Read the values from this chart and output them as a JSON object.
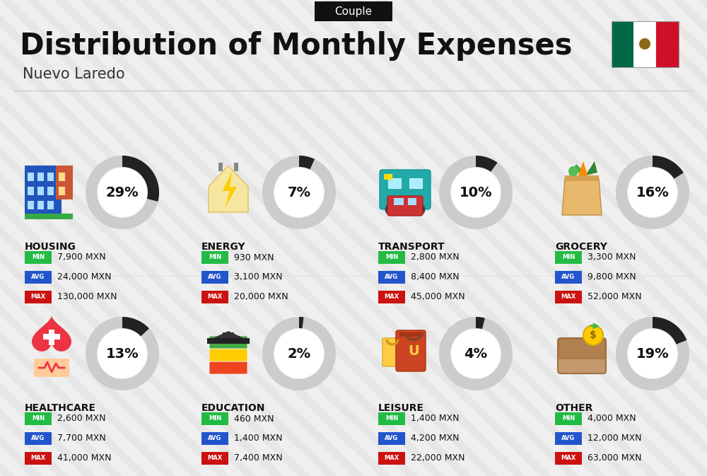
{
  "title": "Distribution of Monthly Expenses",
  "subtitle": "Nuevo Laredo",
  "tag": "Couple",
  "bg_color": "#efefef",
  "categories": [
    {
      "name": "HOUSING",
      "pct": 29,
      "icon": "housing",
      "min": "7,900 MXN",
      "avg": "24,000 MXN",
      "max": "130,000 MXN",
      "row": 0,
      "col": 0
    },
    {
      "name": "ENERGY",
      "pct": 7,
      "icon": "energy",
      "min": "930 MXN",
      "avg": "3,100 MXN",
      "max": "20,000 MXN",
      "row": 0,
      "col": 1
    },
    {
      "name": "TRANSPORT",
      "pct": 10,
      "icon": "transport",
      "min": "2,800 MXN",
      "avg": "8,400 MXN",
      "max": "45,000 MXN",
      "row": 0,
      "col": 2
    },
    {
      "name": "GROCERY",
      "pct": 16,
      "icon": "grocery",
      "min": "3,300 MXN",
      "avg": "9,800 MXN",
      "max": "52,000 MXN",
      "row": 0,
      "col": 3
    },
    {
      "name": "HEALTHCARE",
      "pct": 13,
      "icon": "healthcare",
      "min": "2,600 MXN",
      "avg": "7,700 MXN",
      "max": "41,000 MXN",
      "row": 1,
      "col": 0
    },
    {
      "name": "EDUCATION",
      "pct": 2,
      "icon": "education",
      "min": "460 MXN",
      "avg": "1,400 MXN",
      "max": "7,400 MXN",
      "row": 1,
      "col": 1
    },
    {
      "name": "LEISURE",
      "pct": 4,
      "icon": "leisure",
      "min": "1,400 MXN",
      "avg": "4,200 MXN",
      "max": "22,000 MXN",
      "row": 1,
      "col": 2
    },
    {
      "name": "OTHER",
      "pct": 19,
      "icon": "other",
      "min": "4,000 MXN",
      "avg": "12,000 MXN",
      "max": "63,000 MXN",
      "row": 1,
      "col": 3
    }
  ],
  "color_min": "#22bb44",
  "color_avg": "#2255cc",
  "color_max": "#cc1111",
  "label_min": "MIN",
  "label_avg": "AVG",
  "label_max": "MAX",
  "ring_color_filled": "#222222",
  "ring_color_empty": "#cccccc",
  "flag_green": "#006847",
  "flag_white": "#ffffff",
  "flag_red": "#ce1126",
  "stripe_color": "#e0e0e0",
  "header_line_color": "#cccccc"
}
